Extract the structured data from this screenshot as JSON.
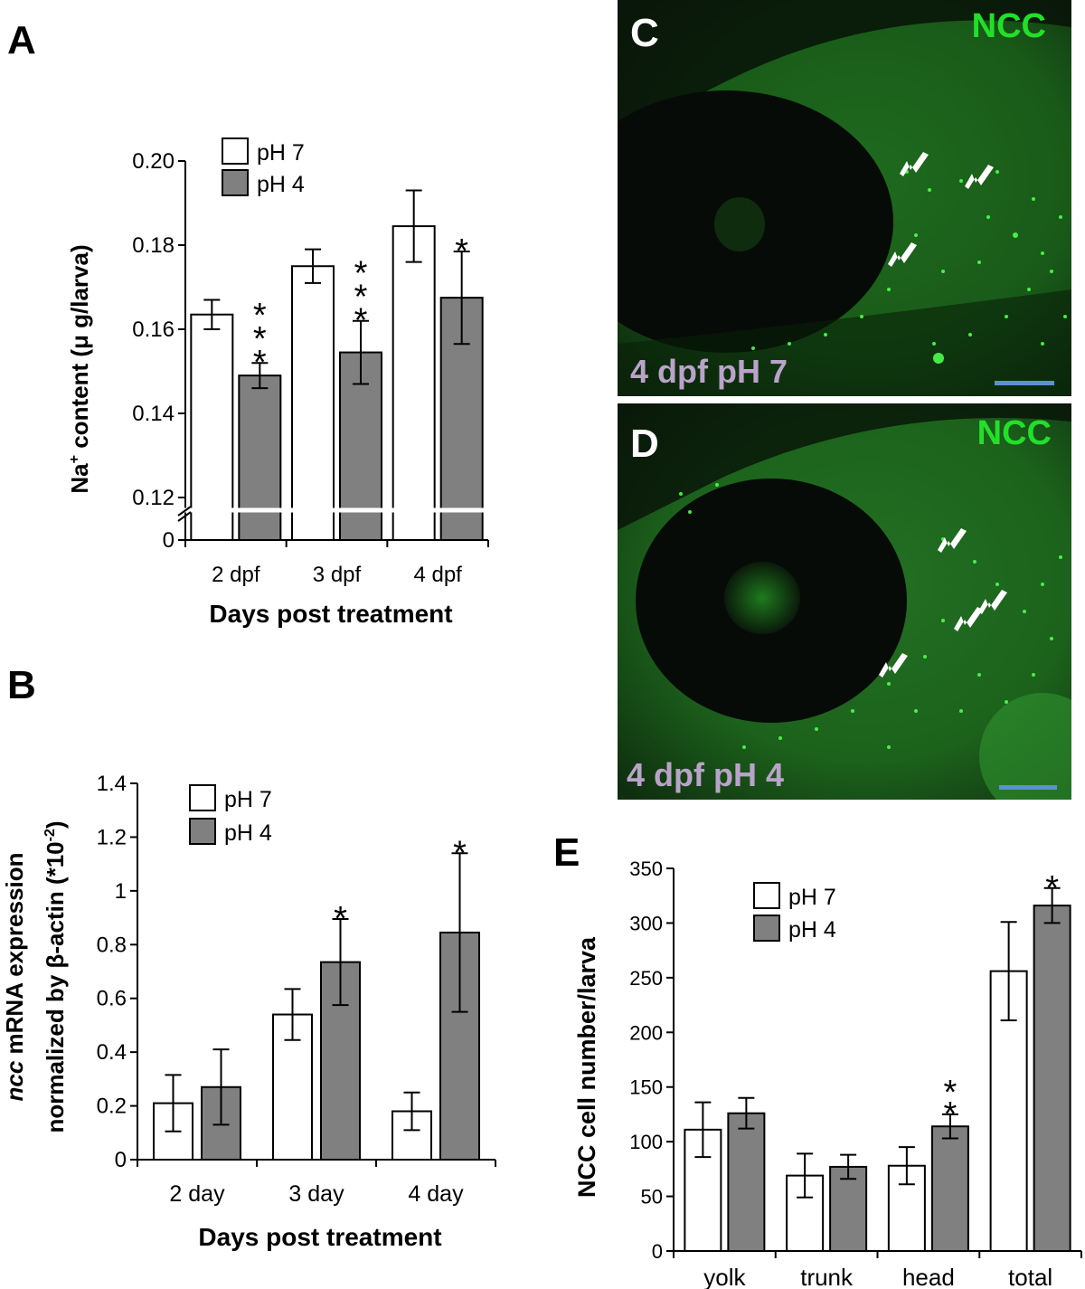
{
  "panel_labels": {
    "a": "A",
    "b": "B",
    "c": "C",
    "d": "D",
    "e": "E"
  },
  "chart_data": [
    {
      "id": "A",
      "type": "bar",
      "categories": [
        "2 dpf",
        "3 dpf",
        "4 dpf"
      ],
      "series": [
        {
          "name": "pH 7",
          "color": "#ffffff",
          "values": [
            0.1635,
            0.175,
            0.1845
          ],
          "errors": [
            0.0035,
            0.004,
            0.0085
          ]
        },
        {
          "name": "pH 4",
          "color": "#808080",
          "values": [
            0.149,
            0.1545,
            0.1675
          ],
          "errors": [
            0.003,
            0.0075,
            0.011
          ]
        }
      ],
      "significance": [
        [
          "",
          "***"
        ],
        [
          "",
          "***"
        ],
        [
          "",
          "*"
        ]
      ],
      "xlabel": "Days post treatment",
      "ylabel_prefix": "Na",
      "ylabel_sup": "+",
      "ylabel_suffix": " content (μ g/larva)",
      "ytick_labels": [
        "0",
        "0.12",
        "0.14",
        "0.16",
        "0.18",
        "0.20"
      ],
      "ylim": [
        0.12,
        0.2
      ],
      "axis_break": true,
      "legend_position": "top-left"
    },
    {
      "id": "B",
      "type": "bar",
      "categories": [
        "2 day",
        "3 day",
        "4 day"
      ],
      "series": [
        {
          "name": "pH 7",
          "color": "#ffffff",
          "values": [
            0.21,
            0.54,
            0.18
          ],
          "errors": [
            0.105,
            0.095,
            0.07
          ]
        },
        {
          "name": "pH 4",
          "color": "#808080",
          "values": [
            0.27,
            0.735,
            0.845
          ],
          "errors": [
            0.14,
            0.16,
            0.295
          ]
        }
      ],
      "significance": [
        [
          "",
          ""
        ],
        [
          "",
          "*"
        ],
        [
          "",
          "*"
        ]
      ],
      "xlabel": "Days post treatment",
      "ylabel_line1_italic": "ncc",
      "ylabel_line1_rest": " mRNA expression",
      "ylabel_line2": "normalized by β-actin (*10",
      "ylabel_line2_sup": "-2",
      "ylabel_line2_end": ")",
      "ytick_labels": [
        "0",
        "0.2",
        "0.4",
        "0.6",
        "0.8",
        "1",
        "1.2",
        "1.4"
      ],
      "ylim": [
        0,
        1.4
      ],
      "legend_position": "top-left"
    },
    {
      "id": "E",
      "type": "bar",
      "categories": [
        "yolk",
        "trunk",
        "head",
        "total"
      ],
      "series": [
        {
          "name": "pH 7",
          "color": "#ffffff",
          "values": [
            111,
            69,
            78,
            256
          ],
          "errors": [
            25,
            20,
            17,
            45
          ]
        },
        {
          "name": "pH 4",
          "color": "#808080",
          "values": [
            126,
            77,
            114,
            316
          ],
          "errors": [
            14,
            11,
            11,
            16
          ]
        }
      ],
      "significance": [
        [
          "",
          ""
        ],
        [
          "",
          ""
        ],
        [
          "",
          "**"
        ],
        [
          "",
          "*"
        ]
      ],
      "ylabel": "NCC cell number/larva",
      "ytick_labels": [
        "0",
        "50",
        "100",
        "150",
        "200",
        "250",
        "300",
        "350"
      ],
      "ylim": [
        0,
        350
      ],
      "legend_position": "top-left"
    }
  ],
  "micrographs": [
    {
      "id": "C",
      "stain_label": "NCC",
      "condition_label": "4 dpf pH 7",
      "stain_color": "#22e02a",
      "condition_color": "#b9a3c9",
      "scale_bar_color": "#5b8fd6"
    },
    {
      "id": "D",
      "stain_label": "NCC",
      "condition_label": "4 dpf pH 4",
      "stain_color": "#22e02a",
      "condition_color": "#b9a3c9",
      "scale_bar_color": "#5b8fd6"
    }
  ]
}
